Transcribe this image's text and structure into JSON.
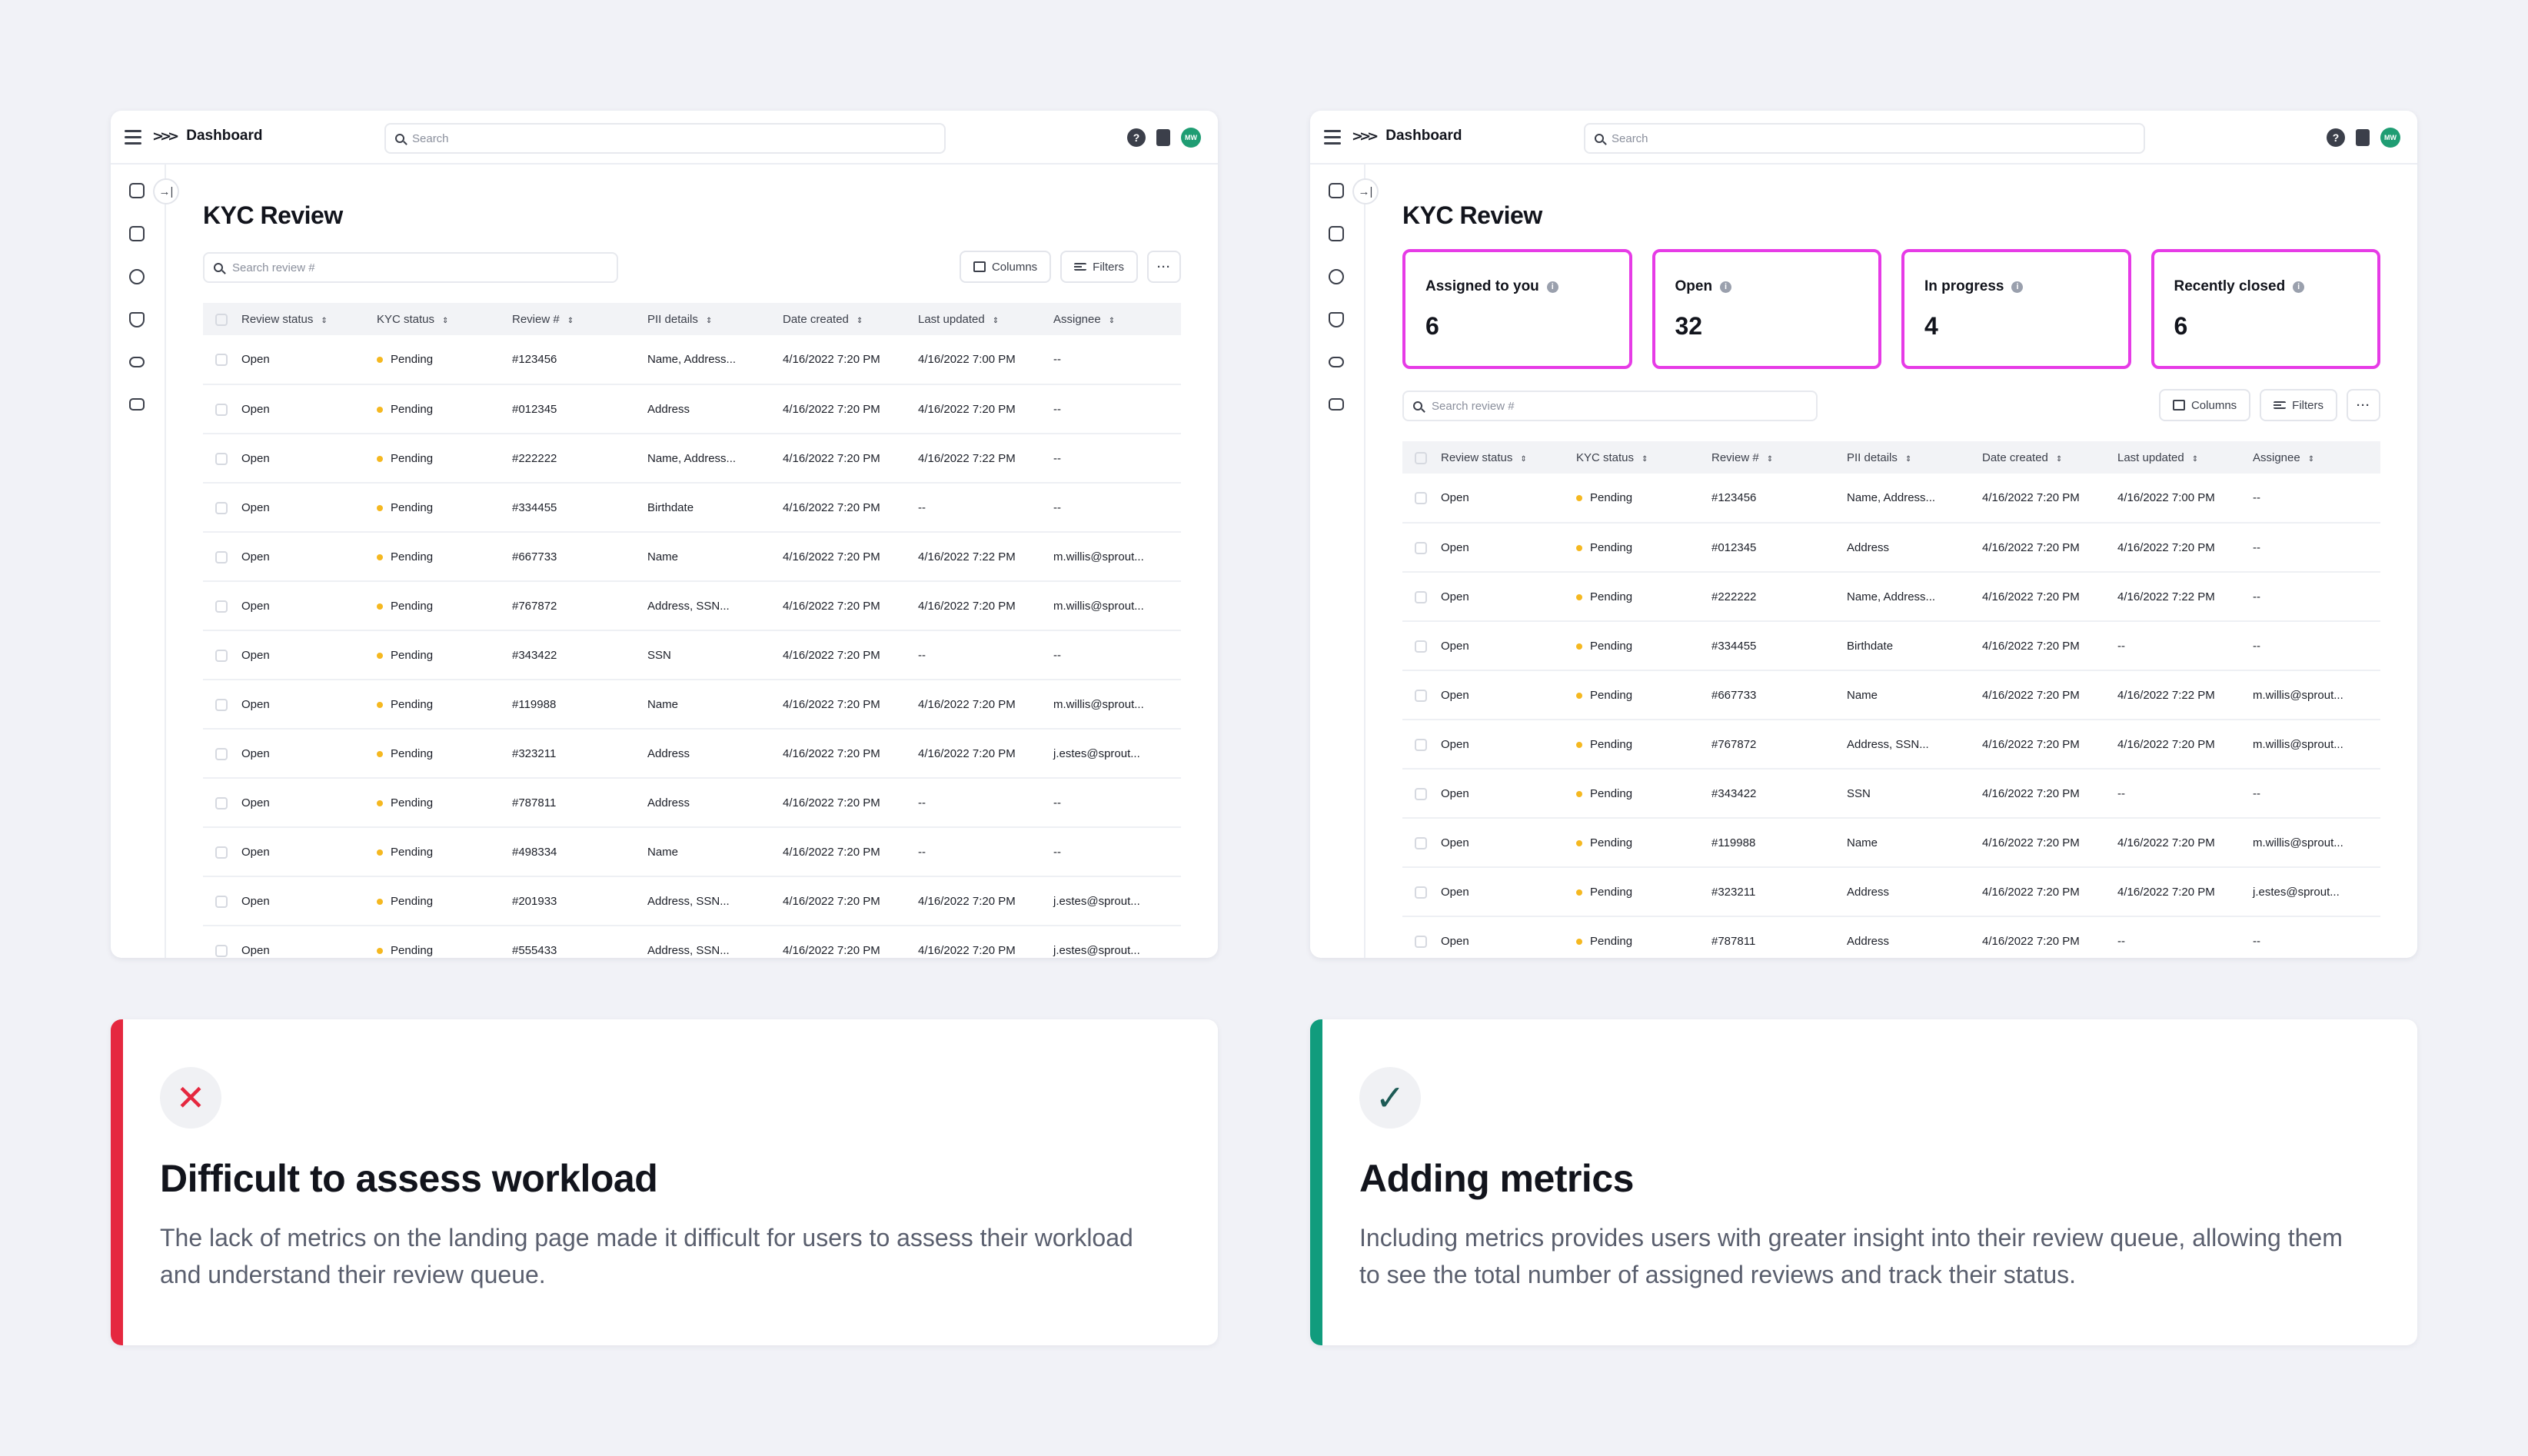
{
  "colors": {
    "accent_metric_border": "#e63be6",
    "pending_dot": "#f5b820",
    "negative": "#e5283f",
    "positive": "#119c7d",
    "avatar_bg": "#1f9d73"
  },
  "app": {
    "title": "Dashboard",
    "search_placeholder": "Search",
    "avatar_initials": "MW",
    "icons": [
      "help-icon",
      "docs-icon"
    ],
    "nav_icons": [
      "home-icon",
      "document-icon",
      "user-icon",
      "shield-icon",
      "toggle-icon",
      "card-icon"
    ]
  },
  "page": {
    "title": "KYC Review",
    "table_search_placeholder": "Search review #",
    "columns_label": "Columns",
    "filters_label": "Filters",
    "more_label": "···"
  },
  "metrics": [
    {
      "label": "Assigned to you",
      "value": "6"
    },
    {
      "label": "Open",
      "value": "32"
    },
    {
      "label": "In progress",
      "value": "4"
    },
    {
      "label": "Recently closed",
      "value": "6"
    }
  ],
  "table": {
    "headers": [
      "Review status",
      "KYC status",
      "Review #",
      "PII details",
      "Date created",
      "Last updated",
      "Assignee"
    ],
    "rows": [
      [
        "Open",
        "Pending",
        "#123456",
        "Name, Address...",
        "4/16/2022 7:20 PM",
        "4/16/2022 7:00 PM",
        "--"
      ],
      [
        "Open",
        "Pending",
        "#012345",
        "Address",
        "4/16/2022 7:20 PM",
        "4/16/2022 7:20 PM",
        "--"
      ],
      [
        "Open",
        "Pending",
        "#222222",
        "Name, Address...",
        "4/16/2022 7:20 PM",
        "4/16/2022 7:22 PM",
        "--"
      ],
      [
        "Open",
        "Pending",
        "#334455",
        "Birthdate",
        "4/16/2022 7:20 PM",
        "--",
        "--"
      ],
      [
        "Open",
        "Pending",
        "#667733",
        "Name",
        "4/16/2022 7:20 PM",
        "4/16/2022 7:22 PM",
        "m.willis@sprout..."
      ],
      [
        "Open",
        "Pending",
        "#767872",
        "Address, SSN...",
        "4/16/2022 7:20 PM",
        "4/16/2022 7:20 PM",
        "m.willis@sprout..."
      ],
      [
        "Open",
        "Pending",
        "#343422",
        "SSN",
        "4/16/2022 7:20 PM",
        "--",
        "--"
      ],
      [
        "Open",
        "Pending",
        "#119988",
        "Name",
        "4/16/2022 7:20 PM",
        "4/16/2022 7:20 PM",
        "m.willis@sprout..."
      ],
      [
        "Open",
        "Pending",
        "#323211",
        "Address",
        "4/16/2022 7:20 PM",
        "4/16/2022 7:20 PM",
        "j.estes@sprout..."
      ],
      [
        "Open",
        "Pending",
        "#787811",
        "Address",
        "4/16/2022 7:20 PM",
        "--",
        "--"
      ],
      [
        "Open",
        "Pending",
        "#498334",
        "Name",
        "4/16/2022 7:20 PM",
        "--",
        "--"
      ],
      [
        "Open",
        "Pending",
        "#201933",
        "Address, SSN...",
        "4/16/2022 7:20 PM",
        "4/16/2022 7:20 PM",
        "j.estes@sprout..."
      ],
      [
        "Open",
        "Pending",
        "#555433",
        "Address, SSN...",
        "4/16/2022 7:20 PM",
        "4/16/2022 7:20 PM",
        "j.estes@sprout..."
      ]
    ]
  },
  "before": {
    "icon": "x-icon",
    "title": "Difficult to assess workload",
    "body": "The lack of metrics on the landing page made it difficult for users to assess their workload and understand their review queue."
  },
  "after": {
    "icon": "check-icon",
    "title": "Adding metrics",
    "body": "Including metrics provides users with greater insight into their review queue, allowing them to see the total number of assigned reviews and track their status."
  }
}
